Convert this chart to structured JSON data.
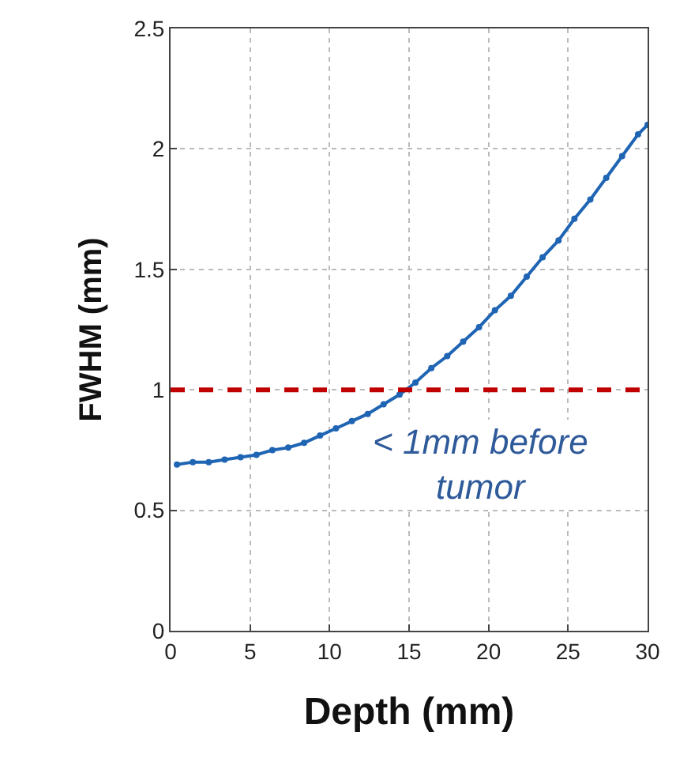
{
  "chart_data": {
    "type": "line",
    "xlabel": "Depth (mm)",
    "ylabel": "FWHM (mm)",
    "x": [
      0.4,
      1.4,
      2.4,
      3.4,
      4.4,
      5.4,
      6.4,
      7.4,
      8.4,
      9.4,
      10.4,
      11.4,
      12.4,
      13.4,
      14.4,
      15.4,
      16.4,
      17.4,
      18.4,
      19.4,
      20.4,
      21.4,
      22.4,
      23.4,
      24.4,
      25.4,
      26.4,
      27.4,
      28.4,
      29.4,
      30
    ],
    "series": [
      {
        "color": "#1f65b4",
        "values": [
          0.69,
          0.7,
          0.7,
          0.71,
          0.72,
          0.73,
          0.75,
          0.76,
          0.78,
          0.81,
          0.84,
          0.87,
          0.9,
          0.94,
          0.98,
          1.03,
          1.09,
          1.14,
          1.2,
          1.26,
          1.33,
          1.39,
          1.47,
          1.55,
          1.62,
          1.71,
          1.79,
          1.88,
          1.97,
          2.06,
          2.1
        ]
      }
    ],
    "xlim": [
      0,
      30
    ],
    "xticks": [
      0,
      5,
      10,
      15,
      20,
      25,
      30
    ],
    "ylim": [
      0,
      2.5
    ],
    "yticks": [
      0,
      0.5,
      1,
      1.5,
      2,
      2.5
    ],
    "grid": true,
    "marker": "circle",
    "line_style": "solid",
    "ref_lines": [
      {
        "axis": "y",
        "value": 1,
        "color": "#c00000",
        "line_style": "dashed"
      }
    ],
    "annotations": [
      "< 1mm before tumor"
    ]
  }
}
